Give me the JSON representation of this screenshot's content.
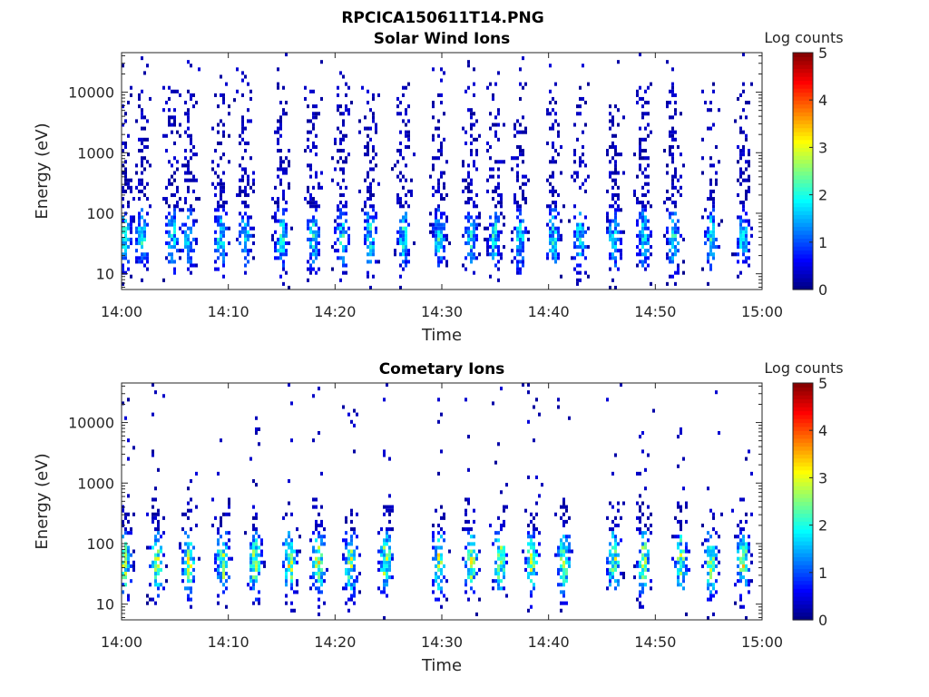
{
  "figure": {
    "title": "RPCICA150611T14.PNG"
  },
  "chart_data": [
    {
      "type": "heatmap",
      "title": "Solar Wind Ions",
      "xlabel": "Time",
      "ylabel": "Energy (eV)",
      "xlim": [
        "14:00",
        "15:00"
      ],
      "ylim": [
        5.5,
        45000
      ],
      "yscale": "log",
      "xticks": [
        "14:00",
        "14:10",
        "14:20",
        "14:30",
        "14:40",
        "14:50",
        "15:00"
      ],
      "yticks": [
        "10",
        "100",
        "1000",
        "10000"
      ],
      "colorbar": {
        "label": "Log counts",
        "range": [
          0,
          5
        ],
        "ticks": [
          "0",
          "1",
          "2",
          "3",
          "4",
          "5"
        ],
        "colormap": "jet"
      },
      "sweep_minutes": [
        0.3,
        1.9,
        4.8,
        6.3,
        9.3,
        11.6,
        15.0,
        18.0,
        20.7,
        23.3,
        26.5,
        29.8,
        32.8,
        35.0,
        37.4,
        40.5,
        43.0,
        46.2,
        49.0,
        51.8,
        55.3,
        58.3
      ],
      "peak_log_counts": 2.5,
      "low_energy_peak_eV": 40,
      "high_energy_reach_eV": 15000
    },
    {
      "type": "heatmap",
      "title": "Cometary Ions",
      "xlabel": "Time",
      "ylabel": "Energy (eV)",
      "xlim": [
        "14:00",
        "15:00"
      ],
      "ylim": [
        5.5,
        45000
      ],
      "yscale": "log",
      "xticks": [
        "14:00",
        "14:10",
        "14:20",
        "14:30",
        "14:40",
        "14:50",
        "15:00"
      ],
      "yticks": [
        "10",
        "100",
        "1000",
        "10000"
      ],
      "colorbar": {
        "label": "Log counts",
        "range": [
          0,
          5
        ],
        "ticks": [
          "0",
          "1",
          "2",
          "3",
          "4",
          "5"
        ],
        "colormap": "jet"
      },
      "sweep_minutes": [
        0.3,
        3.3,
        6.3,
        9.5,
        12.5,
        15.8,
        18.5,
        21.5,
        24.8,
        29.8,
        32.8,
        35.5,
        38.5,
        41.5,
        46.2,
        49.0,
        52.5,
        55.3,
        58.3
      ],
      "peak_log_counts": 3.6,
      "low_energy_peak_eV": 50,
      "high_energy_reach_eV": 600
    }
  ]
}
